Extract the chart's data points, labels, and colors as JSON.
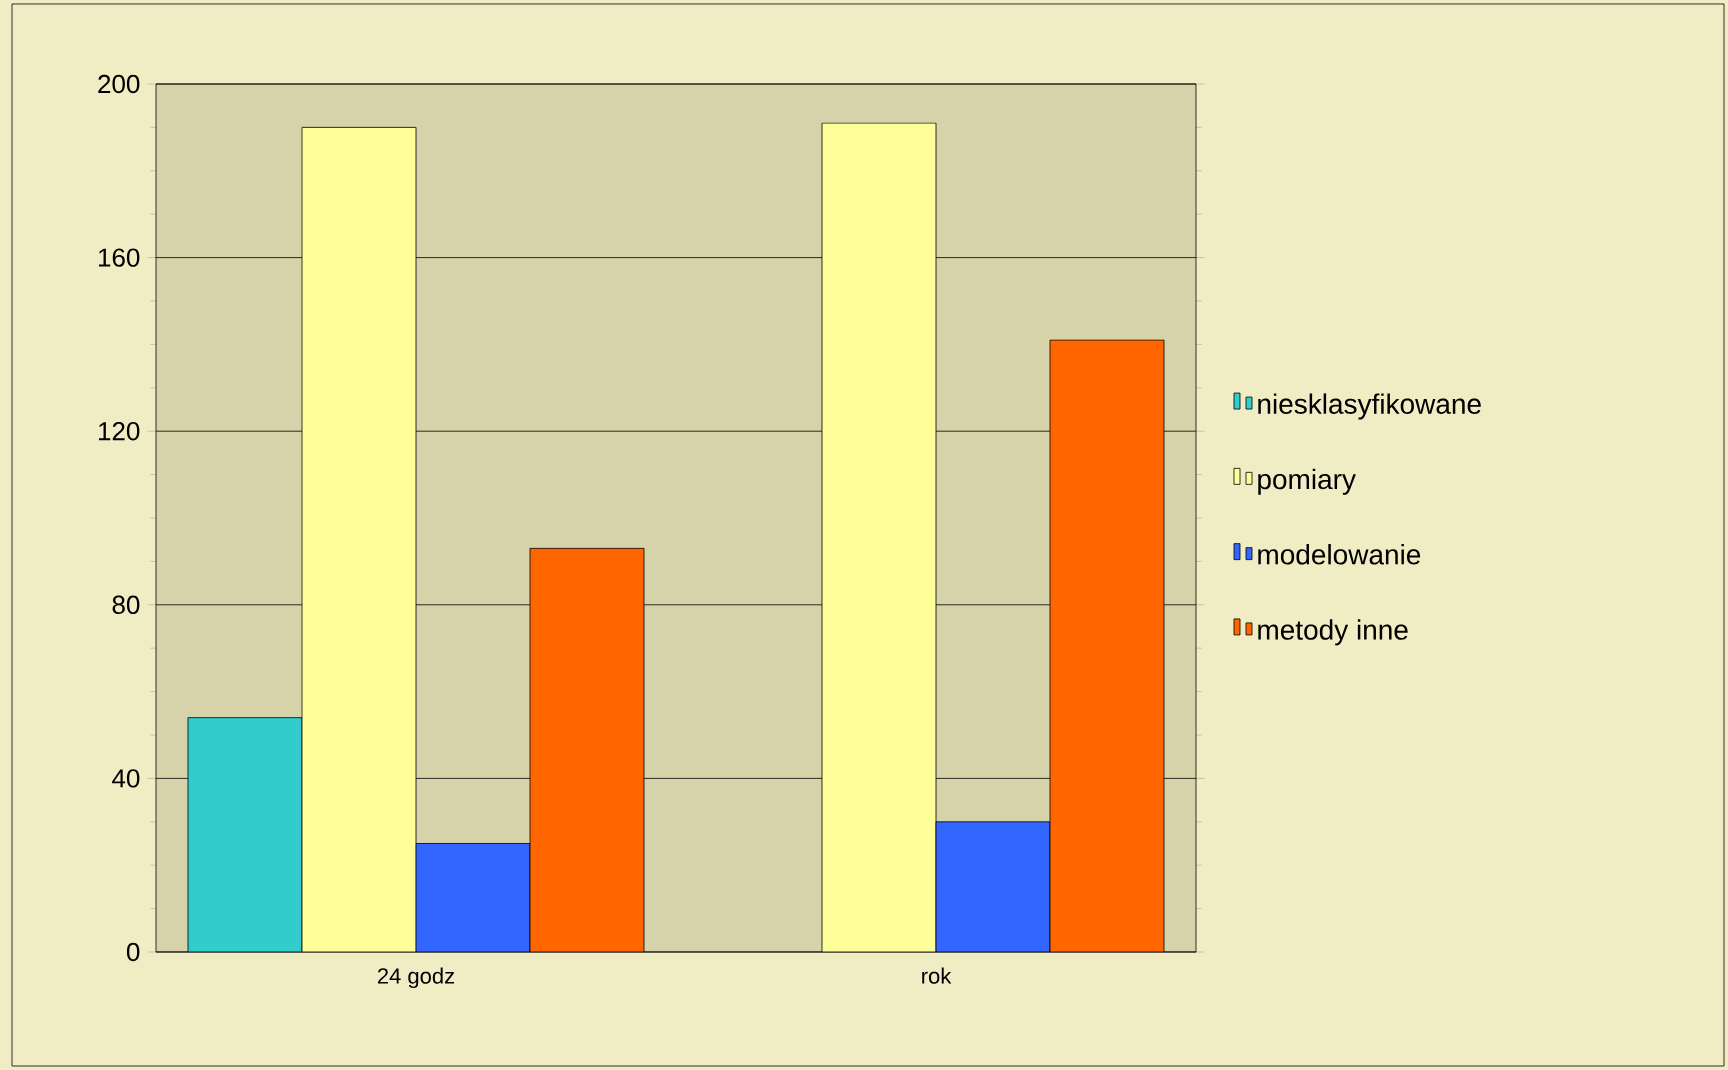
{
  "chart_data": {
    "type": "bar",
    "categories": [
      "24 godz",
      "rok"
    ],
    "series": [
      {
        "name": "niesklasyfikowane",
        "color": "#33cccc",
        "values": [
          54,
          null
        ]
      },
      {
        "name": "pomiary",
        "color": "#ffff99",
        "values": [
          190,
          191
        ]
      },
      {
        "name": "modelowanie",
        "color": "#3366ff",
        "values": [
          25,
          30
        ]
      },
      {
        "name": "metody inne",
        "color": "#ff6600",
        "values": [
          93,
          141
        ]
      }
    ],
    "ylim": [
      0,
      200
    ],
    "yticks": [
      0,
      40,
      80,
      120,
      160,
      200
    ],
    "grid": "y",
    "legend": "right"
  }
}
